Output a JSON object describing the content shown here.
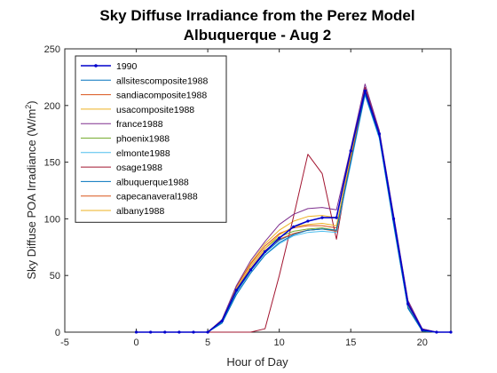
{
  "chart_data": {
    "type": "line",
    "title": [
      "Sky Diffuse Irradiance from the Perez Model",
      "Albuquerque - Aug 2"
    ],
    "xlabel": "Hour of Day",
    "ylabel_prefix": "Sky Diffuse POA Irradiance (W/m",
    "ylabel_sup": "2",
    "ylabel_suffix": ")",
    "xlim": [
      -5,
      22
    ],
    "ylim": [
      0,
      250
    ],
    "xticks": [
      -5,
      0,
      5,
      10,
      15,
      20
    ],
    "yticks": [
      0,
      50,
      100,
      150,
      200,
      250
    ],
    "grid": false,
    "legend_position": "top-left",
    "x": [
      0,
      1,
      2,
      3,
      4,
      5,
      6,
      7,
      8,
      9,
      10,
      11,
      12,
      13,
      14,
      15,
      16,
      17,
      18,
      19,
      20,
      21,
      22
    ],
    "series": [
      {
        "name": "1990",
        "color": "#0000cc",
        "marker": true,
        "values": [
          0,
          0,
          0,
          0,
          0,
          0,
          10,
          37,
          55,
          71,
          83,
          93,
          98,
          101,
          101,
          160,
          213,
          175,
          100,
          25,
          2,
          0,
          0
        ]
      },
      {
        "name": "allsitescomposite1988",
        "color": "#0072bd",
        "values": [
          0,
          0,
          0,
          0,
          0,
          0,
          8,
          33,
          52,
          68,
          79,
          86,
          90,
          91,
          90,
          150,
          210,
          172,
          95,
          21,
          1,
          0,
          0
        ]
      },
      {
        "name": "sandiacomposite1988",
        "color": "#d95319",
        "values": [
          0,
          0,
          0,
          0,
          0,
          0,
          10,
          37,
          56,
          72,
          82,
          87,
          90,
          91,
          89,
          152,
          212,
          174,
          98,
          24,
          2,
          0,
          0
        ]
      },
      {
        "name": "usacomposite1988",
        "color": "#edb120",
        "values": [
          0,
          0,
          0,
          0,
          0,
          0,
          10,
          38,
          58,
          74,
          86,
          93,
          95,
          96,
          94,
          155,
          214,
          175,
          99,
          25,
          2,
          0,
          0
        ]
      },
      {
        "name": "france1988",
        "color": "#7e2f8e",
        "values": [
          0,
          0,
          0,
          0,
          0,
          0,
          11,
          41,
          63,
          80,
          95,
          104,
          109,
          110,
          108,
          162,
          219,
          178,
          103,
          28,
          3,
          0,
          0
        ]
      },
      {
        "name": "phoenix1988",
        "color": "#77ac30",
        "values": [
          0,
          0,
          0,
          0,
          0,
          0,
          10,
          38,
          58,
          74,
          84,
          89,
          91,
          92,
          90,
          152,
          212,
          174,
          98,
          24,
          2,
          0,
          0
        ]
      },
      {
        "name": "elmonte1988",
        "color": "#4dbeee",
        "values": [
          0,
          0,
          0,
          0,
          0,
          0,
          8,
          33,
          52,
          68,
          78,
          85,
          88,
          89,
          88,
          148,
          209,
          171,
          94,
          21,
          1,
          0,
          0
        ]
      },
      {
        "name": "osage1988",
        "color": "#a2142f",
        "values": [
          0,
          0,
          0,
          0,
          0,
          0,
          0,
          0,
          0,
          3,
          50,
          102,
          157,
          140,
          82,
          155,
          216,
          177,
          102,
          27,
          3,
          0,
          0
        ]
      },
      {
        "name": "albuquerque1988",
        "color": "#0072bd",
        "values": [
          0,
          0,
          0,
          0,
          0,
          0,
          9,
          35,
          54,
          70,
          81,
          87,
          90,
          91,
          90,
          150,
          210,
          172,
          96,
          22,
          1,
          0,
          0
        ]
      },
      {
        "name": "capecanaveral1988",
        "color": "#d95319",
        "values": [
          0,
          0,
          0,
          0,
          0,
          0,
          11,
          40,
          60,
          76,
          87,
          92,
          94,
          94,
          92,
          153,
          213,
          175,
          99,
          25,
          2,
          0,
          0
        ]
      },
      {
        "name": "albany1988",
        "color": "#edb120",
        "values": [
          0,
          0,
          0,
          0,
          0,
          0,
          11,
          40,
          61,
          78,
          90,
          98,
          102,
          103,
          101,
          158,
          215,
          176,
          100,
          26,
          2,
          0,
          0
        ]
      }
    ]
  }
}
